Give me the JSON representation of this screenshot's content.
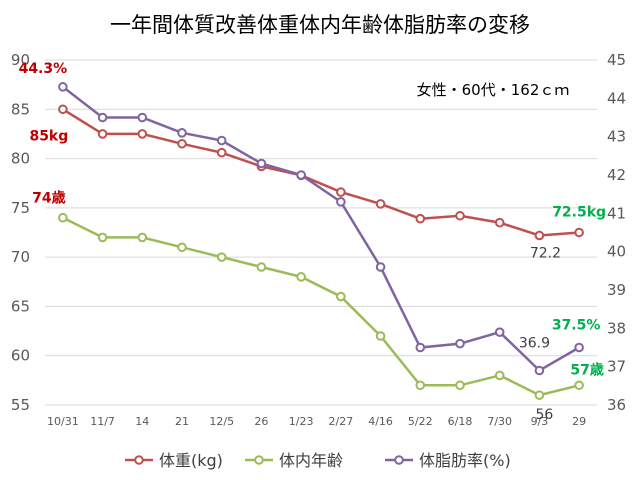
{
  "chart_data": {
    "type": "line",
    "title": "一年間体質改善体重体内年齢体脂肪率の変移",
    "note": "女性・60代・162ｃｍ",
    "categories": [
      "10/31",
      "11/7",
      "14",
      "21",
      "12/5",
      "26",
      "1/23",
      "2/27",
      "4/16",
      "5/22",
      "6/18",
      "7/30",
      "9/3",
      "29"
    ],
    "y_left": {
      "range": [
        55,
        90
      ],
      "ticks": [
        "55",
        "60",
        "65",
        "70",
        "75",
        "80",
        "85",
        "90"
      ]
    },
    "y_right": {
      "range": [
        36,
        45
      ],
      "ticks": [
        "36",
        "37",
        "38",
        "39",
        "40",
        "41",
        "42",
        "43",
        "44",
        "45"
      ]
    },
    "grid": true,
    "legend_position": "bottom",
    "series": [
      {
        "name": "体重(kg)",
        "axis": "left",
        "color": "#c0504d",
        "values": [
          85,
          82.5,
          82.5,
          81.5,
          80.6,
          79.2,
          78.3,
          76.6,
          75.4,
          73.9,
          74.2,
          73.5,
          72.2,
          72.5
        ]
      },
      {
        "name": "体内年齢",
        "axis": "left",
        "color": "#9bbb59",
        "values": [
          74,
          72,
          72,
          71,
          70,
          69,
          68,
          66,
          62,
          57,
          57,
          58,
          56,
          57
        ]
      },
      {
        "name": "体脂肪率(%)",
        "axis": "right",
        "color": "#8064a2",
        "values": [
          44.3,
          43.5,
          43.5,
          43.1,
          42.9,
          42.3,
          42.0,
          41.3,
          39.6,
          37.5,
          37.6,
          37.9,
          36.9,
          37.5
        ]
      }
    ],
    "annotations": [
      {
        "text": "44.3%",
        "series": 2,
        "point": 0,
        "color": "#c00000",
        "bold": true
      },
      {
        "text": "85kg",
        "series": 0,
        "point": 0,
        "color": "#c00000",
        "bold": true
      },
      {
        "text": "74歳",
        "series": 1,
        "point": 0,
        "color": "#c00000",
        "bold": true
      },
      {
        "text": "72.5kg",
        "series": 0,
        "point": 13,
        "color": "#00b050",
        "bold": true
      },
      {
        "text": "72.2",
        "series": 0,
        "point": 12,
        "color": "#404040",
        "bold": false
      },
      {
        "text": "37.5%",
        "series": 2,
        "point": 13,
        "color": "#00b050",
        "bold": true
      },
      {
        "text": "36.9",
        "series": 2,
        "point": 12,
        "color": "#404040",
        "bold": false
      },
      {
        "text": "57歳",
        "series": 1,
        "point": 13,
        "color": "#00b050",
        "bold": true
      },
      {
        "text": "56",
        "series": 1,
        "point": 12,
        "color": "#404040",
        "bold": false
      }
    ]
  }
}
